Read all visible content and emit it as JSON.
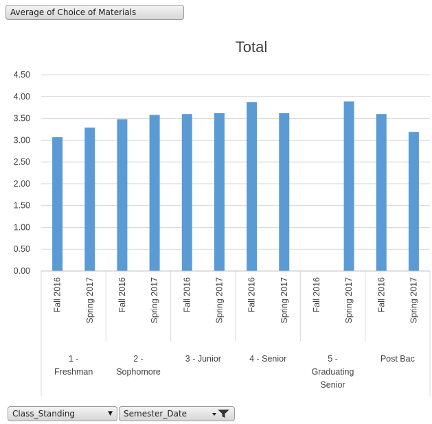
{
  "value_field_button": "Average of Choice of Materials",
  "row_field_buttons": {
    "class_standing": "Class_Standing",
    "semester_date": "Semester_Date"
  },
  "colors": {
    "bar": "#5b9bd5",
    "grid": "#d9d9d9",
    "axis_text": "#404040"
  },
  "icons": {
    "dropdown": "chevron-down-icon",
    "filter": "filter-icon"
  },
  "chart_data": {
    "type": "bar",
    "title": "Total",
    "ylim": [
      0,
      4.5
    ],
    "yticks": [
      "0.00",
      "0.50",
      "1.00",
      "1.50",
      "2.00",
      "2.50",
      "3.00",
      "3.50",
      "4.00",
      "4.50"
    ],
    "grid": true,
    "legend": "none",
    "groups": [
      {
        "label": [
          "1 -",
          "Freshman"
        ],
        "categories": [
          "Fall 2016",
          "Spring 2017"
        ],
        "values": [
          3.07,
          3.29
        ]
      },
      {
        "label": [
          "2 -",
          "Sophomore"
        ],
        "categories": [
          "Fall 2016",
          "Spring 2017"
        ],
        "values": [
          3.48,
          3.58
        ]
      },
      {
        "label": [
          "3 - Junior"
        ],
        "categories": [
          "Fall 2016",
          "Spring 2017"
        ],
        "values": [
          3.6,
          3.62
        ]
      },
      {
        "label": [
          "4 - Senior"
        ],
        "categories": [
          "Fall 2016",
          "Spring 2017"
        ],
        "values": [
          3.87,
          3.62
        ]
      },
      {
        "label": [
          "5 -",
          "Graduating",
          "Senior"
        ],
        "categories": [
          "Fall 2016",
          "Spring 2017"
        ],
        "values": [
          null,
          3.89
        ]
      },
      {
        "label": [
          "Post Bac"
        ],
        "categories": [
          "Fall 2016",
          "Spring 2017"
        ],
        "values": [
          3.6,
          3.19
        ]
      }
    ]
  }
}
